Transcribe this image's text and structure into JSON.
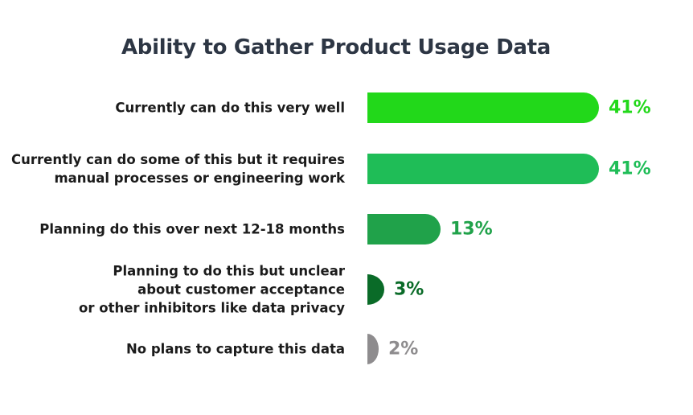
{
  "title": "Ability to Gather Product Usage Data",
  "chart_data": {
    "type": "bar",
    "orientation": "horizontal",
    "title": "Ability to Gather Product Usage Data",
    "xlabel": "",
    "ylabel": "",
    "grid": false,
    "categories": [
      "Currently can do this very well",
      "Currently can do some of this but it requires manual processes or engineering work",
      "Planning do this over next 12-18 months",
      "Planning to do this but unclear about customer acceptance or other inhibitors like data privacy",
      "No plans to capture this data"
    ],
    "values": [
      41,
      41,
      13,
      3,
      2
    ],
    "value_labels": [
      "41%",
      "41%",
      "13%",
      "3%",
      "2%"
    ],
    "colors": [
      "#22d81a",
      "#1fbd57",
      "#20a24a",
      "#0a6b28",
      "#8e8c8e"
    ]
  },
  "rows": [
    {
      "label": "Currently can do this very well",
      "value": "41%",
      "pct": 41,
      "color": "#22d81a",
      "text_color": "#22d81a"
    },
    {
      "label": "Currently can do some of this but it requires\nmanual processes or engineering work",
      "value": "41%",
      "pct": 41,
      "color": "#1fbd57",
      "text_color": "#1fbd57"
    },
    {
      "label": "Planning do this over next 12-18 months",
      "value": "13%",
      "pct": 13,
      "color": "#20a24a",
      "text_color": "#20a24a"
    },
    {
      "label": "Planning to do this but unclear\nabout customer acceptance\nor other inhibitors like data privacy",
      "value": "3%",
      "pct": 3,
      "color": "#0a6b28",
      "text_color": "#0a6b28"
    },
    {
      "label": "No plans to capture this data",
      "value": "2%",
      "pct": 2,
      "color": "#8e8c8e",
      "text_color": "#8e8c8e"
    }
  ]
}
